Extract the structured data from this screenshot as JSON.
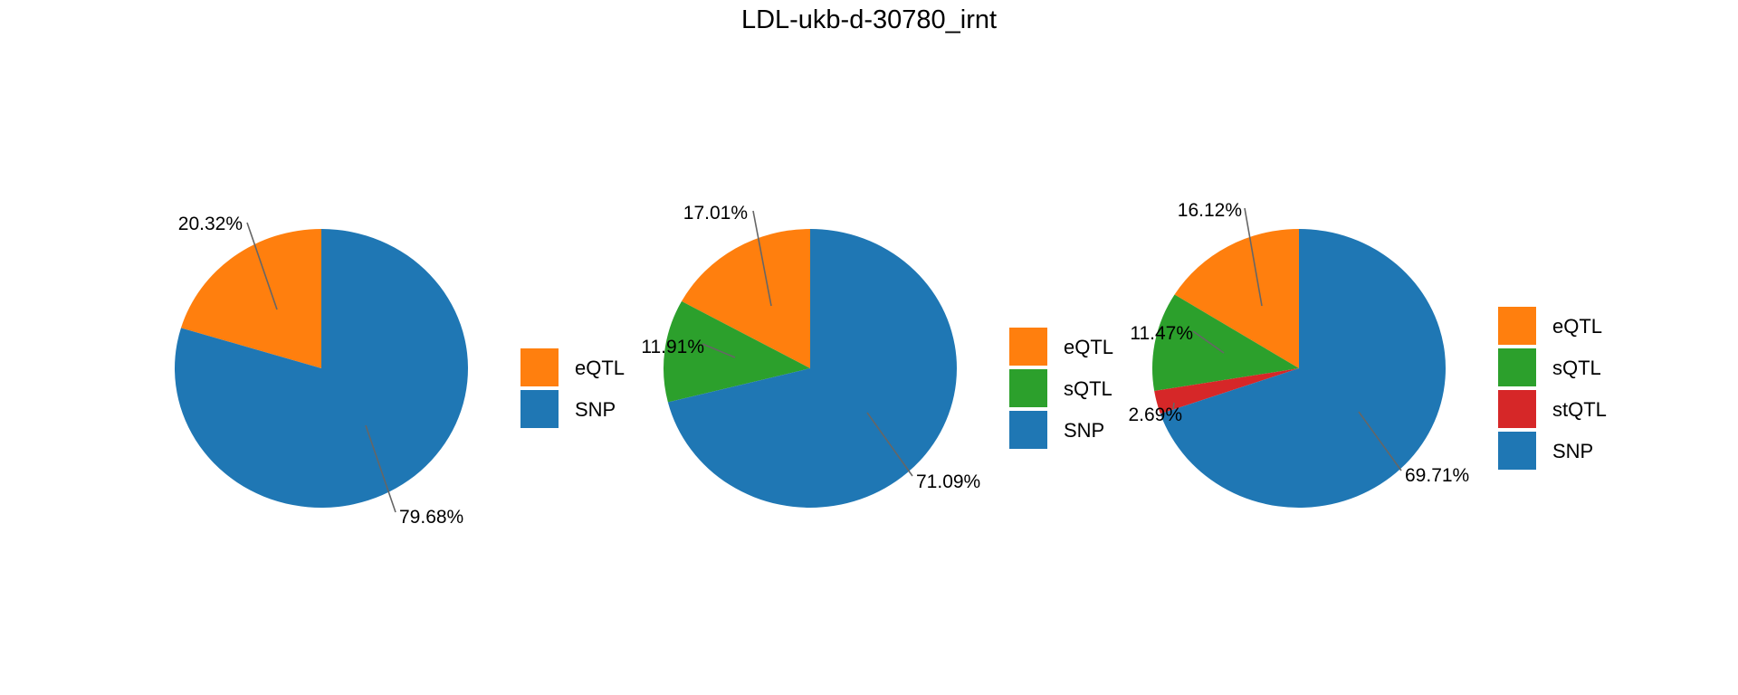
{
  "chart_data": {
    "title": "LDL-ukb-d-30780_irnt",
    "type": "pie",
    "colors": {
      "eQTL": "#ff7f0e",
      "sQTL": "#2ca02c",
      "stQTL": "#d62728",
      "SNP": "#1f77b4"
    },
    "charts": [
      {
        "slices": [
          {
            "name": "eQTL",
            "value": 20.32,
            "label": "20.32%"
          },
          {
            "name": "SNP",
            "value": 79.68,
            "label": "79.68%"
          }
        ],
        "legend": [
          "eQTL",
          "SNP"
        ]
      },
      {
        "slices": [
          {
            "name": "eQTL",
            "value": 17.01,
            "label": "17.01%"
          },
          {
            "name": "sQTL",
            "value": 11.91,
            "label": "11.91%"
          },
          {
            "name": "SNP",
            "value": 71.09,
            "label": "71.09%"
          }
        ],
        "legend": [
          "eQTL",
          "sQTL",
          "SNP"
        ]
      },
      {
        "slices": [
          {
            "name": "eQTL",
            "value": 16.12,
            "label": "16.12%"
          },
          {
            "name": "sQTL",
            "value": 11.47,
            "label": "11.47%"
          },
          {
            "name": "stQTL",
            "value": 2.69,
            "label": "2.69%"
          },
          {
            "name": "SNP",
            "value": 69.71,
            "label": "69.71%"
          }
        ],
        "legend": [
          "eQTL",
          "sQTL",
          "stQTL",
          "SNP"
        ]
      }
    ]
  }
}
